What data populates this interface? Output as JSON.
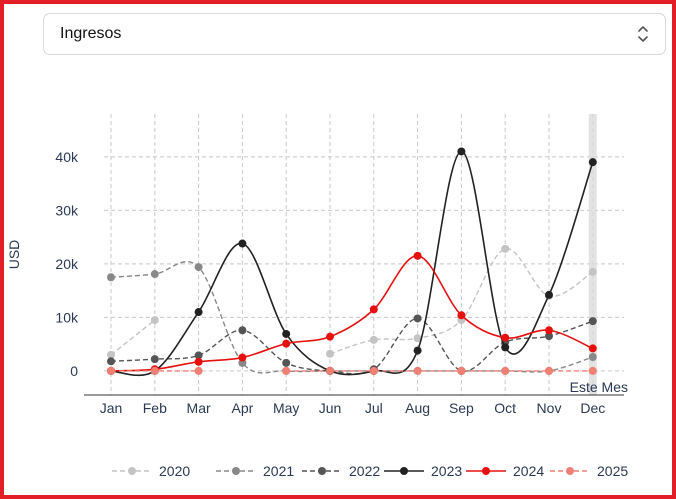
{
  "selector": {
    "value": "Ingresos"
  },
  "chart_data": {
    "type": "line",
    "categories": [
      "Jan",
      "Feb",
      "Mar",
      "Apr",
      "May",
      "Jun",
      "Jul",
      "Aug",
      "Sep",
      "Oct",
      "Nov",
      "Dec"
    ],
    "ylabel": "USD",
    "ylim": [
      -4500,
      48000
    ],
    "yticks": [
      0,
      10000,
      20000,
      30000,
      40000
    ],
    "ytick_labels": [
      "0",
      "10k",
      "20k",
      "30k",
      "40k"
    ],
    "highlight_category": "Dec",
    "annotation": "Este Mes",
    "grid": true,
    "legend_position": "bottom",
    "series": [
      {
        "name": "2020",
        "color": "#c4c4c4",
        "dashed": true,
        "values": [
          3000,
          9500,
          null,
          null,
          null,
          3200,
          5800,
          6100,
          9500,
          22800,
          14000,
          18500
        ]
      },
      {
        "name": "2021",
        "color": "#888888",
        "dashed": true,
        "values": [
          17500,
          18100,
          19400,
          1500,
          0,
          0,
          0,
          0,
          0,
          0,
          0,
          2600
        ]
      },
      {
        "name": "2022",
        "color": "#555555",
        "dashed": true,
        "values": [
          1800,
          2200,
          2900,
          7600,
          1500,
          0,
          300,
          9800,
          0,
          5400,
          6500,
          9300
        ]
      },
      {
        "name": "2023",
        "color": "#222222",
        "dashed": false,
        "values": [
          0,
          0,
          11000,
          23800,
          6900,
          0,
          0,
          3800,
          41000,
          4400,
          14200,
          39000
        ]
      },
      {
        "name": "2024",
        "color": "#e8100f",
        "dashed": false,
        "values": [
          0,
          300,
          1700,
          2500,
          5100,
          6400,
          11500,
          21500,
          10400,
          6200,
          7600,
          4200
        ]
      },
      {
        "name": "2025",
        "color": "#f07f74",
        "dashed": true,
        "values": [
          0,
          0,
          0,
          null,
          0,
          0,
          0,
          0,
          0,
          0,
          0,
          0
        ]
      }
    ]
  }
}
